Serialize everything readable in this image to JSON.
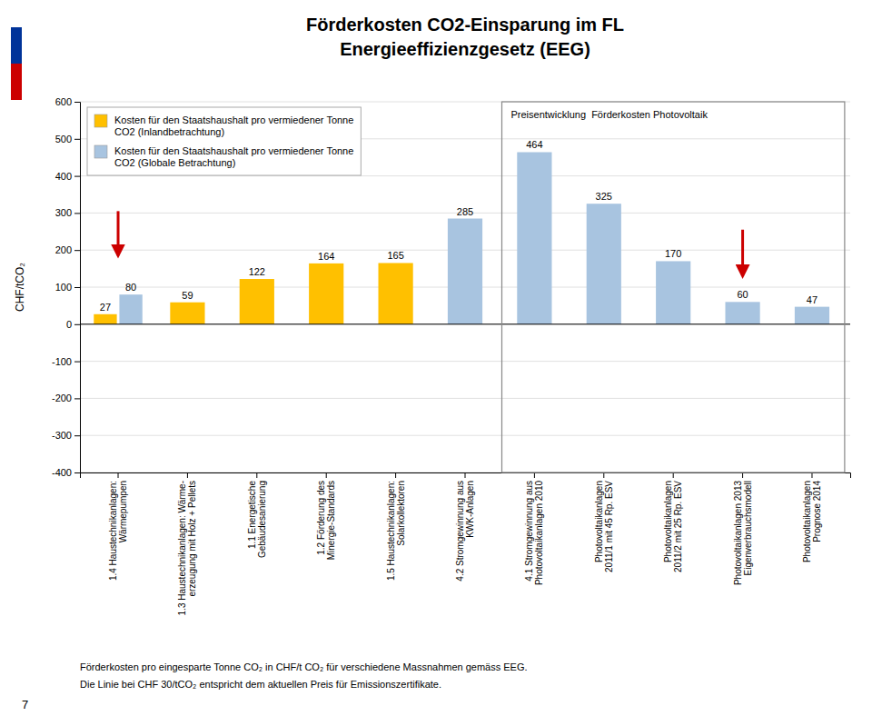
{
  "chart_data": {
    "type": "bar",
    "title": "Förderkosten CO2-Einsparung im FL\nEnergieeffizienzgesetz (EEG)",
    "ylabel": "CHF/tCO₂",
    "categories": [
      "1.4 Haustechnikanlagen:\nWärmepumpen",
      "1.3 Haustechnikanlagen: Wärme-\nerzeugung mit Holz + Pellets",
      "1.1 Energetische\nGebäudesanierung",
      "1.2 Förderung des\nMinergie-Standards",
      "1.5 Haustechnikanlagen:\nSolarkollektoren",
      "4.2 Stromgewinnung aus\nKWK-Anlagen",
      "4.1 Stromgewinnung aus\nPhotovoltaikanlagen 2010",
      "Photovoltaikanlagen\n2011/1 mit 45 Rp. ESV",
      "Photovoltaikanlagen\n2011/2 mit 25 Rp. ESV",
      "Photovoltaikanlagen 2013\nEigenverbrauchsmodell",
      "Photovoltaikanlagen\nPrognose 2014"
    ],
    "series": [
      {
        "name": "Kosten für den Staatshaushalt pro vermiedener Tonne\nCO2 (Inlandbetrachtung)",
        "color": "#FFC000",
        "values": [
          27,
          59,
          122,
          164,
          165,
          null,
          null,
          null,
          null,
          null,
          null
        ]
      },
      {
        "name": "Kosten für den Staatshaushalt pro vermiedener Tonne\nCO2 (Globale Betrachtung)",
        "color": "#A8C4E0",
        "values": [
          80,
          null,
          null,
          null,
          null,
          285,
          464,
          325,
          170,
          60,
          47
        ]
      }
    ],
    "ylim": [
      -400,
      600
    ],
    "yticks": [
      -400,
      -300,
      -200,
      -100,
      0,
      100,
      200,
      300,
      400,
      500,
      600
    ],
    "grid": true,
    "legend": "top-left",
    "data_labels": true,
    "highlight_box": {
      "label": "Preisentwicklung  Förderkosten Photovoltaik",
      "from": 6,
      "to": 10
    },
    "arrows": [
      {
        "x": 0,
        "from": 305,
        "to": 185,
        "color": "#CC0000"
      },
      {
        "x": 9,
        "from": 255,
        "to": 130,
        "color": "#CC0000"
      }
    ],
    "notes": [
      "Förderkosten pro eingesparte Tonne CO₂ in CHF/t CO₂ für verschiedene Massnahmen gemäss EEG.",
      "Die Linie bei CHF 30/tCO₂ entspricht dem aktuellen Preis für Emissionszertifikate."
    ],
    "page_number": 7,
    "logo_colors": [
      "#003399",
      "#CC0000"
    ]
  }
}
